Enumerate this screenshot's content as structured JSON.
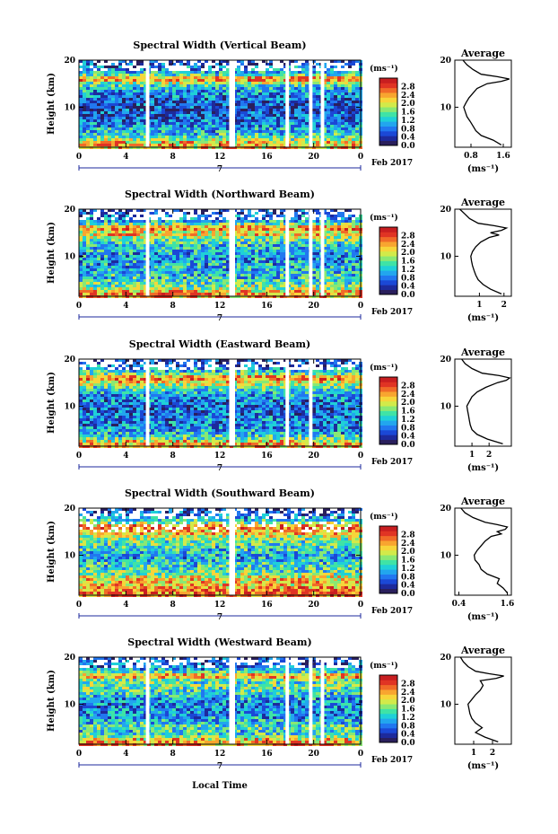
{
  "figure": {
    "x_label": "Local Time",
    "date_label": "Feb 2017",
    "day_label": "7",
    "colorbar_unit": "(ms⁻¹)",
    "avg_title": "Average",
    "avg_xlabel": "(ms⁻¹)",
    "height_label": "Height (km)"
  },
  "chart_data": [
    {
      "type": "heatmap",
      "title": "Spectral Width (Vertical Beam)",
      "xlabel": "Local Time",
      "ylabel": "Height (km)",
      "x_ticks": [
        "0",
        "4",
        "8",
        "12",
        "16",
        "20",
        "0"
      ],
      "y_ticks": [
        "10",
        "20"
      ],
      "xlim": [
        0,
        24
      ],
      "ylim": [
        1.5,
        20
      ],
      "colorbar": {
        "ticks": [
          "0.0",
          "0.4",
          "0.8",
          "1.2",
          "1.6",
          "2.0",
          "2.4",
          "2.8"
        ],
        "range": [
          0,
          3.2
        ]
      },
      "data_gaps_hours": [
        [
          5.7,
          6.0
        ],
        [
          12.8,
          13.3
        ],
        [
          17.6,
          17.9
        ],
        [
          19.6,
          19.9
        ],
        [
          20.6,
          20.9
        ]
      ],
      "average_profile": {
        "xlim": [
          0.4,
          1.8
        ],
        "x_ticks": [
          "0.8",
          "1.6"
        ],
        "height_km": [
          2,
          3,
          4,
          5,
          6,
          7,
          8,
          9,
          10,
          11,
          12,
          13,
          14,
          15,
          15.5,
          16,
          16.5,
          17,
          18,
          19,
          20
        ],
        "value": [
          1.55,
          1.35,
          1.05,
          0.92,
          0.85,
          0.78,
          0.7,
          0.66,
          0.62,
          0.68,
          0.75,
          0.85,
          0.95,
          1.2,
          1.55,
          1.75,
          1.45,
          1.05,
          0.85,
          0.7,
          0.6
        ]
      }
    },
    {
      "type": "heatmap",
      "title": "Spectral Width (Northward Beam)",
      "xlabel": "Local Time",
      "ylabel": "Height (km)",
      "x_ticks": [
        "0",
        "4",
        "8",
        "12",
        "16",
        "20",
        "0"
      ],
      "y_ticks": [
        "10",
        "20"
      ],
      "xlim": [
        0,
        24
      ],
      "ylim": [
        1.5,
        20
      ],
      "colorbar": {
        "ticks": [
          "0.0",
          "0.4",
          "0.8",
          "1.2",
          "1.6",
          "2.0",
          "2.4",
          "2.8"
        ],
        "range": [
          0,
          3.2
        ]
      },
      "data_gaps_hours": [
        [
          5.7,
          6.0
        ],
        [
          12.8,
          13.3
        ],
        [
          17.6,
          17.9
        ],
        [
          19.6,
          19.9
        ],
        [
          20.6,
          20.9
        ]
      ],
      "average_profile": {
        "xlim": [
          0,
          2.3
        ],
        "x_ticks": [
          "1",
          "2"
        ],
        "height_km": [
          2,
          3,
          4,
          5,
          6,
          7,
          8,
          9,
          10,
          11,
          12,
          13,
          14,
          14.5,
          15,
          15.5,
          16,
          16.5,
          17,
          18,
          19,
          20
        ],
        "value": [
          1.9,
          1.45,
          1.15,
          0.95,
          0.85,
          0.78,
          0.72,
          0.68,
          0.65,
          0.72,
          0.85,
          1.05,
          1.4,
          1.8,
          1.45,
          1.9,
          2.1,
          1.6,
          0.95,
          0.6,
          0.4,
          0.2
        ]
      }
    },
    {
      "type": "heatmap",
      "title": "Spectral Width (Eastward Beam)",
      "xlabel": "Local Time",
      "ylabel": "Height (km)",
      "x_ticks": [
        "0",
        "4",
        "8",
        "12",
        "16",
        "20",
        "0"
      ],
      "y_ticks": [
        "10",
        "20"
      ],
      "xlim": [
        0,
        24
      ],
      "ylim": [
        1.5,
        20
      ],
      "colorbar": {
        "ticks": [
          "0.0",
          "0.4",
          "0.8",
          "1.2",
          "1.6",
          "2.0",
          "2.4",
          "2.8"
        ],
        "range": [
          0,
          3.2
        ]
      },
      "data_gaps_hours": [
        [
          5.7,
          6.0
        ],
        [
          12.8,
          13.3
        ],
        [
          17.6,
          17.9
        ],
        [
          19.6,
          19.9
        ]
      ],
      "average_profile": {
        "xlim": [
          0,
          3.3
        ],
        "x_ticks": [
          "1",
          "2"
        ],
        "height_km": [
          2,
          3,
          4,
          5,
          6,
          7,
          8,
          9,
          10,
          11,
          12,
          13,
          14,
          15,
          15.5,
          16,
          16.5,
          17,
          18,
          19,
          20
        ],
        "value": [
          2.8,
          1.9,
          1.3,
          1.0,
          0.9,
          0.85,
          0.8,
          0.75,
          0.7,
          0.85,
          1.0,
          1.3,
          1.8,
          2.5,
          3.0,
          3.2,
          2.6,
          1.6,
          1.0,
          0.6,
          0.4
        ]
      }
    },
    {
      "type": "heatmap",
      "title": "Spectral Width (Southward Beam)",
      "xlabel": "Local Time",
      "ylabel": "Height (km)",
      "x_ticks": [
        "0",
        "4",
        "8",
        "12",
        "16",
        "20",
        "0"
      ],
      "y_ticks": [
        "10",
        "20"
      ],
      "xlim": [
        0,
        24
      ],
      "ylim": [
        1.5,
        20
      ],
      "colorbar": {
        "ticks": [
          "0.0",
          "0.4",
          "0.8",
          "1.2",
          "1.6",
          "2.0",
          "2.4",
          "2.8"
        ],
        "range": [
          0,
          3.2
        ]
      },
      "data_gaps_hours": [
        [
          12.8,
          13.3
        ]
      ],
      "average_profile": {
        "xlim": [
          0.3,
          1.7
        ],
        "x_ticks": [
          "0.4",
          "1.6"
        ],
        "height_km": [
          2,
          3,
          4,
          5,
          6,
          7,
          8,
          9,
          10,
          11,
          12,
          13,
          14,
          14.5,
          15,
          15.5,
          16,
          16.5,
          17,
          18,
          19,
          20
        ],
        "value": [
          1.6,
          1.5,
          1.35,
          1.4,
          1.1,
          0.95,
          0.9,
          0.8,
          0.78,
          0.85,
          0.95,
          1.05,
          1.2,
          1.45,
          1.35,
          1.55,
          1.6,
          1.35,
          1.05,
          0.75,
          0.55,
          0.45
        ]
      }
    },
    {
      "type": "heatmap",
      "title": "Spectral Width (Westward Beam)",
      "xlabel": "Local Time",
      "ylabel": "Height (km)",
      "x_ticks": [
        "0",
        "4",
        "8",
        "12",
        "16",
        "20",
        "0"
      ],
      "y_ticks": [
        "10",
        "20"
      ],
      "xlim": [
        0,
        24
      ],
      "ylim": [
        1.5,
        20
      ],
      "colorbar": {
        "ticks": [
          "0.0",
          "0.4",
          "0.8",
          "1.2",
          "1.6",
          "2.0",
          "2.4",
          "2.8"
        ],
        "range": [
          0,
          3.2
        ]
      },
      "data_gaps_hours": [
        [
          5.7,
          6.0
        ],
        [
          12.8,
          13.3
        ],
        [
          17.6,
          17.9
        ],
        [
          19.6,
          19.9
        ],
        [
          20.6,
          20.9
        ]
      ],
      "average_profile": {
        "xlim": [
          0,
          3.0
        ],
        "x_ticks": [
          "1",
          "2"
        ],
        "height_km": [
          2,
          3,
          4,
          5,
          6,
          7,
          8,
          9,
          10,
          11,
          12,
          13,
          14,
          15,
          15.5,
          16,
          16.5,
          17,
          18,
          19,
          20
        ],
        "value": [
          2.3,
          1.6,
          1.1,
          1.45,
          1.1,
          0.9,
          0.8,
          0.75,
          0.7,
          0.9,
          1.1,
          1.35,
          1.5,
          1.35,
          2.2,
          2.6,
          1.8,
          1.1,
          0.7,
          0.45,
          0.3
        ]
      }
    }
  ]
}
